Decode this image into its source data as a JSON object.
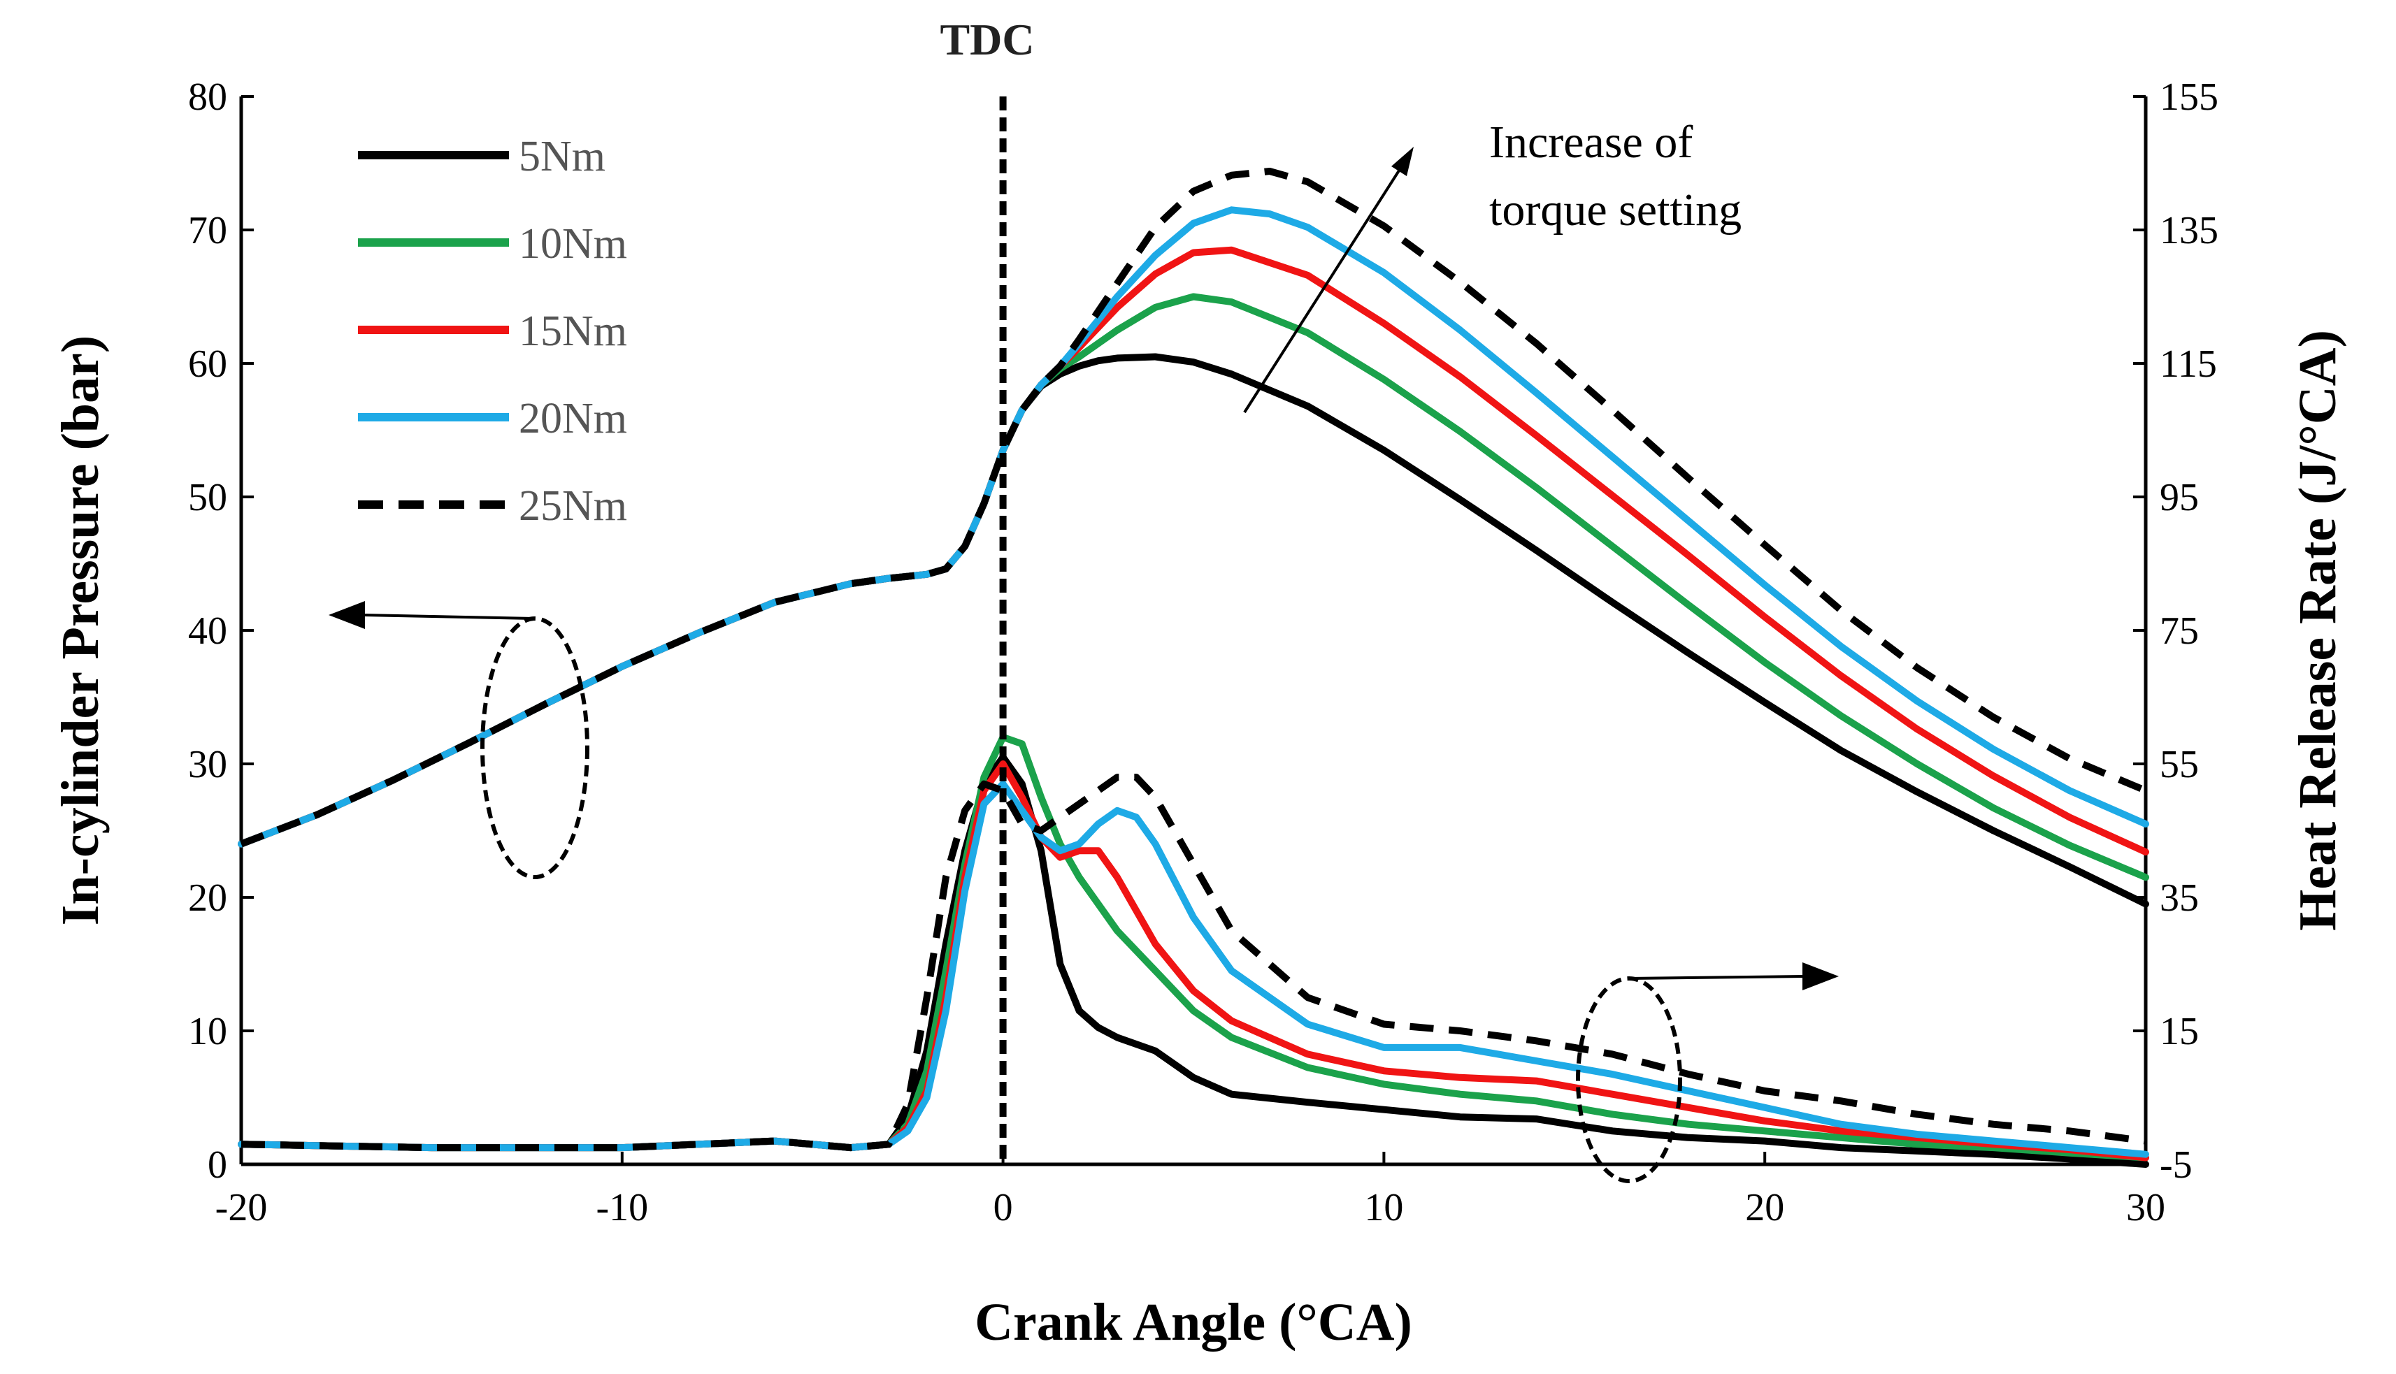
{
  "chart_data": {
    "type": "line",
    "title": "",
    "xlabel": "Crank Angle (°CA)",
    "ylabel": "In-cylinder Pressure (bar)",
    "y2label": "Heat Release Rate (J/°CA)",
    "xlim": [
      -20,
      30
    ],
    "ylim": [
      0,
      80
    ],
    "y2lim": [
      -5,
      155
    ],
    "xticks": [
      -20,
      -10,
      0,
      10,
      20,
      30
    ],
    "yticks": [
      0,
      10,
      20,
      30,
      40,
      50,
      60,
      70,
      80
    ],
    "y2ticks": [
      -5,
      15,
      35,
      55,
      75,
      95,
      115,
      135,
      155
    ],
    "legend_position": "top-left",
    "tdc_label": "TDC",
    "tdc_x": 0,
    "annotation": [
      "Increase of",
      "torque setting"
    ],
    "series": [
      {
        "name": "5Nm",
        "color": "#000000",
        "dash": false,
        "pressure": {
          "x": [
            -20,
            -18,
            -16,
            -14,
            -12,
            -10,
            -8,
            -6,
            -4,
            -3,
            -2,
            -1.5,
            -1,
            -0.5,
            0,
            0.5,
            1,
            1.5,
            2,
            2.5,
            3,
            4,
            5,
            6,
            8,
            10,
            12,
            14,
            16,
            18,
            20,
            22,
            24,
            26,
            28,
            30
          ],
          "y": [
            24,
            26.2,
            28.8,
            31.6,
            34.5,
            37.3,
            39.8,
            42.1,
            43.5,
            43.9,
            44.2,
            44.6,
            46.3,
            49.5,
            53.5,
            56.5,
            58.3,
            59.2,
            59.8,
            60.2,
            60.4,
            60.5,
            60.1,
            59.2,
            56.8,
            53.5,
            49.8,
            46,
            42.1,
            38.3,
            34.6,
            31,
            27.9,
            25,
            22.3,
            19.5
          ]
        },
        "hrr": {
          "x": [
            -20,
            -15,
            -10,
            -6,
            -4,
            -3,
            -2.5,
            -2,
            -1.5,
            -1,
            -0.5,
            0,
            0.5,
            1,
            1.5,
            2,
            2.5,
            3,
            4,
            5,
            6,
            8,
            10,
            12,
            14,
            16,
            18,
            20,
            22,
            24,
            26,
            28,
            30
          ],
          "y": [
            -2,
            -2.5,
            -2.5,
            -1.5,
            -2.5,
            -2,
            2,
            12,
            28,
            42,
            52,
            56,
            52,
            42,
            25,
            18,
            15.5,
            14,
            12,
            8,
            5.5,
            4.3,
            3.2,
            2.1,
            1.8,
            0,
            -1,
            -1.5,
            -2.5,
            -3,
            -3.5,
            -4.2,
            -5
          ]
        }
      },
      {
        "name": "10Nm",
        "color": "#1BA24B",
        "dash": false,
        "pressure": {
          "x": [
            -20,
            -18,
            -16,
            -14,
            -12,
            -10,
            -8,
            -6,
            -4,
            -3,
            -2,
            -1.5,
            -1,
            -0.5,
            0,
            0.5,
            1,
            1.5,
            2,
            3,
            4,
            5,
            6,
            8,
            10,
            12,
            14,
            16,
            18,
            20,
            22,
            24,
            26,
            28,
            30
          ],
          "y": [
            24,
            26.2,
            28.8,
            31.6,
            34.5,
            37.3,
            39.8,
            42.1,
            43.5,
            43.9,
            44.2,
            44.6,
            46.3,
            49.5,
            53.5,
            56.5,
            58.4,
            59.6,
            60.5,
            62.5,
            64.2,
            65,
            64.6,
            62.3,
            58.8,
            54.9,
            50.7,
            46.3,
            41.9,
            37.6,
            33.6,
            30,
            26.7,
            23.9,
            21.5
          ]
        },
        "hrr": {
          "x": [
            -20,
            -15,
            -10,
            -6,
            -4,
            -3,
            -2.5,
            -2,
            -1.5,
            -1,
            -0.5,
            0,
            0.5,
            1,
            1.5,
            2,
            2.5,
            3,
            4,
            5,
            6,
            8,
            10,
            12,
            14,
            16,
            18,
            20,
            22,
            24,
            26,
            28,
            30
          ],
          "y": [
            -2,
            -2.5,
            -2.5,
            -1.5,
            -2.5,
            -2,
            1,
            9,
            24,
            40,
            53,
            59,
            58,
            50,
            43,
            38,
            34,
            30,
            24,
            18,
            14,
            9.5,
            7,
            5.5,
            4.5,
            2.5,
            1,
            0,
            -1,
            -2,
            -2.5,
            -3.3,
            -4
          ]
        }
      },
      {
        "name": "15Nm",
        "color": "#F01414",
        "dash": false,
        "pressure": {
          "x": [
            -20,
            -18,
            -16,
            -14,
            -12,
            -10,
            -8,
            -6,
            -4,
            -3,
            -2,
            -1.5,
            -1,
            -0.5,
            0,
            0.5,
            1,
            1.5,
            2,
            3,
            4,
            5,
            6,
            8,
            10,
            12,
            14,
            16,
            18,
            20,
            22,
            24,
            26,
            28,
            30
          ],
          "y": [
            24,
            26.2,
            28.8,
            31.6,
            34.5,
            37.3,
            39.8,
            42.1,
            43.5,
            43.9,
            44.2,
            44.6,
            46.3,
            49.5,
            53.5,
            56.5,
            58.4,
            59.8,
            61.2,
            64.2,
            66.7,
            68.3,
            68.5,
            66.6,
            63,
            59,
            54.6,
            50.1,
            45.6,
            41,
            36.6,
            32.6,
            29.1,
            26,
            23.4
          ]
        },
        "hrr": {
          "x": [
            -20,
            -15,
            -10,
            -6,
            -4,
            -3,
            -2.5,
            -2,
            -1.5,
            -1,
            -0.5,
            0,
            0.5,
            1,
            1.5,
            2,
            2.5,
            3,
            4,
            5,
            6,
            8,
            10,
            12,
            14,
            16,
            18,
            20,
            22,
            24,
            26,
            28,
            30
          ],
          "y": [
            -2,
            -2.5,
            -2.5,
            -1.5,
            -2.5,
            -2,
            0.5,
            6,
            20,
            38,
            51,
            55,
            50,
            44,
            41,
            42,
            42,
            38,
            28,
            21,
            16.5,
            11.5,
            9,
            8,
            7.5,
            5.5,
            3.5,
            1.5,
            0,
            -1,
            -2,
            -2.8,
            -4
          ]
        }
      },
      {
        "name": "20Nm",
        "color": "#1EAAE6",
        "dash": false,
        "pressure": {
          "x": [
            -20,
            -18,
            -16,
            -14,
            -12,
            -10,
            -8,
            -6,
            -4,
            -3,
            -2,
            -1.5,
            -1,
            -0.5,
            0,
            0.5,
            1,
            1.5,
            2,
            3,
            4,
            5,
            6,
            7,
            8,
            10,
            12,
            14,
            16,
            18,
            20,
            22,
            24,
            26,
            28,
            30
          ],
          "y": [
            24,
            26.2,
            28.8,
            31.6,
            34.5,
            37.3,
            39.8,
            42.1,
            43.5,
            43.9,
            44.2,
            44.6,
            46.3,
            49.5,
            53.5,
            56.5,
            58.4,
            59.8,
            61.5,
            65,
            68.1,
            70.5,
            71.5,
            71.2,
            70.2,
            66.8,
            62.5,
            57.8,
            53,
            48.2,
            43.4,
            38.8,
            34.7,
            31.1,
            28,
            25.5
          ]
        },
        "hrr": {
          "x": [
            -20,
            -15,
            -10,
            -6,
            -4,
            -3,
            -2.5,
            -2,
            -1.5,
            -1,
            -0.5,
            0,
            0.5,
            1,
            1.5,
            2,
            2.5,
            3,
            3.5,
            4,
            5,
            6,
            8,
            10,
            12,
            14,
            16,
            18,
            20,
            22,
            24,
            26,
            28,
            30
          ],
          "y": [
            -2,
            -2.5,
            -2.5,
            -1.5,
            -2.5,
            -2,
            0,
            5,
            18,
            36,
            49,
            52,
            48,
            44,
            42,
            43,
            46,
            48,
            47,
            43,
            32,
            24,
            16,
            12.5,
            12.5,
            10.5,
            8.5,
            6,
            3.5,
            1,
            -0.5,
            -1.5,
            -2.5,
            -3.5
          ]
        }
      },
      {
        "name": "25Nm",
        "color": "#000000",
        "dash": true,
        "pressure": {
          "x": [
            -20,
            -18,
            -16,
            -14,
            -12,
            -10,
            -8,
            -6,
            -4,
            -3,
            -2,
            -1.5,
            -1,
            -0.5,
            0,
            0.5,
            1,
            1.5,
            2,
            3,
            4,
            5,
            6,
            7,
            8,
            10,
            12,
            14,
            16,
            18,
            20,
            22,
            24,
            26,
            28,
            30
          ],
          "y": [
            24,
            26.2,
            28.8,
            31.6,
            34.5,
            37.3,
            39.8,
            42.1,
            43.5,
            43.9,
            44.2,
            44.6,
            46.3,
            49.5,
            53.5,
            56.5,
            58.4,
            59.8,
            61.8,
            66,
            70.2,
            72.9,
            74.1,
            74.4,
            73.6,
            70.3,
            66.1,
            61.5,
            56.5,
            51.4,
            46.4,
            41.5,
            37.2,
            33.5,
            30.4,
            28
          ]
        },
        "hrr": {
          "x": [
            -20,
            -15,
            -10,
            -6,
            -4,
            -3,
            -2.5,
            -2,
            -1.5,
            -1,
            -0.5,
            0,
            0.5,
            1,
            1.5,
            2,
            2.5,
            3,
            3.5,
            4,
            5,
            6,
            8,
            10,
            12,
            14,
            16,
            18,
            20,
            22,
            24,
            26,
            28,
            30
          ],
          "y": [
            -2,
            -2.5,
            -2.5,
            -1.5,
            -2.5,
            -2,
            4,
            20,
            38,
            48,
            52,
            51,
            46,
            45,
            47,
            49,
            51,
            53,
            53,
            50,
            40,
            30,
            20,
            16,
            15,
            13.5,
            11.5,
            8.5,
            6,
            4.5,
            2.5,
            1,
            0,
            -1.5
          ]
        }
      }
    ]
  }
}
